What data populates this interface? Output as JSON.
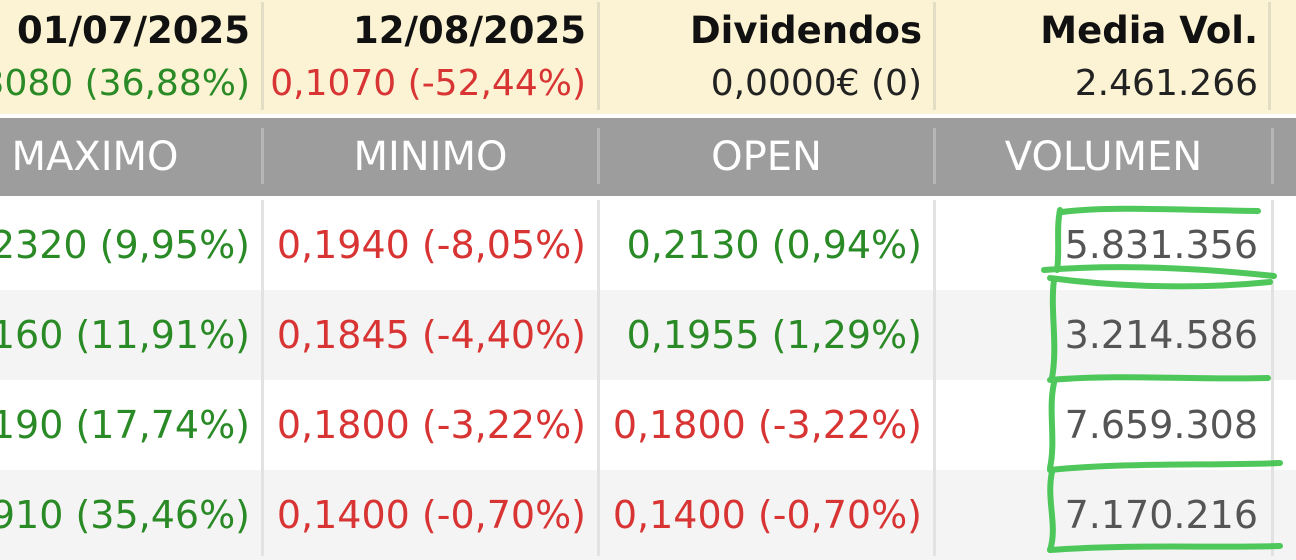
{
  "summary": [
    {
      "title": "01/07/2025",
      "value": "3080 (36,88%)",
      "color": "#2a8a26"
    },
    {
      "title": "12/08/2025",
      "value": "0,1070 (-52,44%)",
      "color": "#d83434"
    },
    {
      "title": "Dividendos",
      "value": "0,0000€ (0)",
      "color": "#111111"
    },
    {
      "title": "Media Vol.",
      "value": "2.461.266",
      "color": "#111111"
    }
  ],
  "columns": [
    "MAXIMO",
    "MINIMO",
    "OPEN",
    "VOLUMEN"
  ],
  "rows": [
    {
      "maximo": "2320 (9,95%)",
      "minimo": "0,1940 (-8,05%)",
      "open": "0,2130 (0,94%)",
      "open_color": "#2a8a26",
      "volumen": "5.831.356"
    },
    {
      "maximo": "160 (11,91%)",
      "minimo": "0,1845 (-4,40%)",
      "open": "0,1955 (1,29%)",
      "open_color": "#2a8a26",
      "volumen": "3.214.586"
    },
    {
      "maximo": "190 (17,74%)",
      "minimo": "0,1800 (-3,22%)",
      "open": "0,1800 (-3,22%)",
      "open_color": "#d83434",
      "volumen": "7.659.308"
    },
    {
      "maximo": "910 (35,46%)",
      "minimo": "0,1400 (-0,70%)",
      "open": "0,1400 (-0,70%)",
      "open_color": "#d83434",
      "volumen": "7.170.216"
    }
  ],
  "colors": {
    "positive": "#2a8a26",
    "negative": "#d83434",
    "header_bg": "#9d9d9d",
    "summary_bg": "#fbf3d4",
    "highlight_marker": "#3cc24a"
  }
}
